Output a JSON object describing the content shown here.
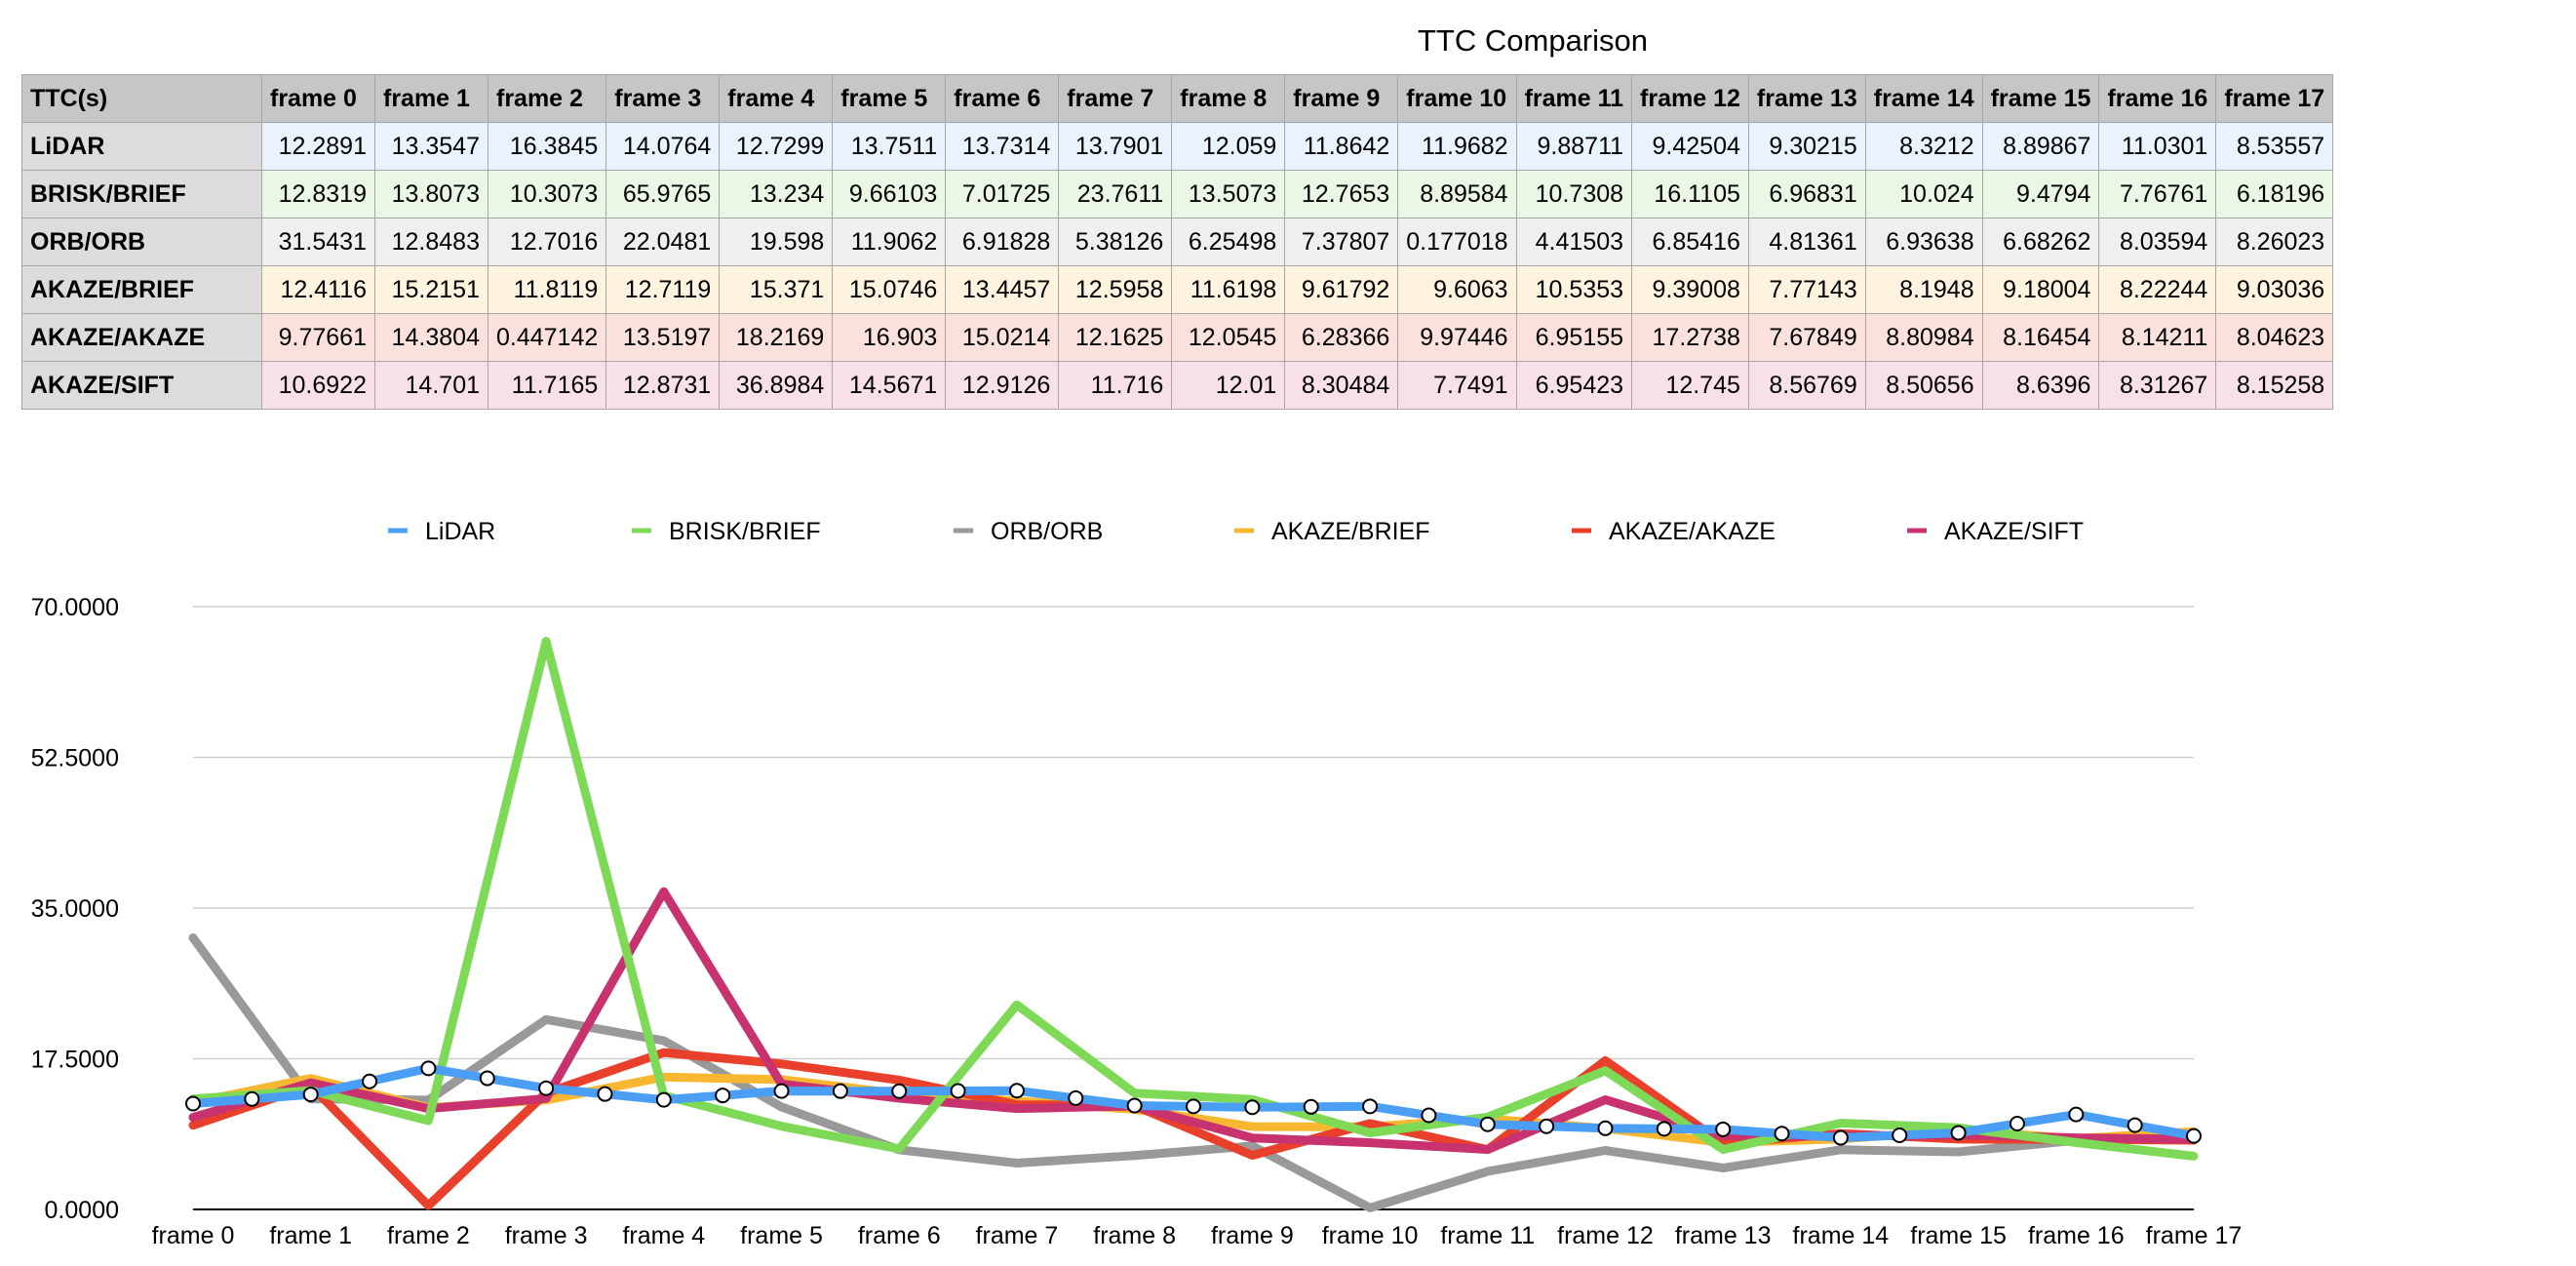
{
  "table": {
    "corner_label": "TTC(s)"
  },
  "chart_data": {
    "type": "line",
    "title": "TTC Comparison",
    "categories": [
      "frame 0",
      "frame 1",
      "frame 2",
      "frame 3",
      "frame 4",
      "frame 5",
      "frame 6",
      "frame 7",
      "frame 8",
      "frame 9",
      "frame 10",
      "frame 11",
      "frame 12",
      "frame 13",
      "frame 14",
      "frame 15",
      "frame 16",
      "frame 17"
    ],
    "ylim": [
      0,
      70
    ],
    "yticks": [
      "0.0000",
      "17.5000",
      "35.0000",
      "52.5000",
      "70.0000"
    ],
    "grid": true,
    "legend_position": "top",
    "series": [
      {
        "name": "LiDAR",
        "color": "#4a9ff5",
        "row_bg": "#e8f3fd",
        "markers": true,
        "values": [
          "12.2891",
          "13.3547",
          "16.3845",
          "14.0764",
          "12.7299",
          "13.7511",
          "13.7314",
          "13.7901",
          "12.059",
          "11.8642",
          "11.9682",
          "9.88711",
          "9.42504",
          "9.30215",
          "8.3212",
          "8.89867",
          "11.0301",
          "8.53557"
        ]
      },
      {
        "name": "BRISK/BRIEF",
        "color": "#7ed957",
        "row_bg": "#eaf7e4",
        "markers": false,
        "values": [
          "12.8319",
          "13.8073",
          "10.3073",
          "65.9765",
          "13.234",
          "9.66103",
          "7.01725",
          "23.7611",
          "13.5073",
          "12.7653",
          "8.89584",
          "10.7308",
          "16.1105",
          "6.96831",
          "10.024",
          "9.4794",
          "7.76761",
          "6.18196"
        ]
      },
      {
        "name": "ORB/ORB",
        "color": "#999999",
        "row_bg": "#efefef",
        "markers": false,
        "values": [
          "31.5431",
          "12.8483",
          "12.7016",
          "22.0481",
          "19.598",
          "11.9062",
          "6.91828",
          "5.38126",
          "6.25498",
          "7.37807",
          "0.177018",
          "4.41503",
          "6.85416",
          "4.81361",
          "6.93638",
          "6.68262",
          "8.03594",
          "8.26023"
        ]
      },
      {
        "name": "AKAZE/BRIEF",
        "color": "#f7b731",
        "row_bg": "#fdf3de",
        "markers": false,
        "values": [
          "12.4116",
          "15.2151",
          "11.8119",
          "12.7119",
          "15.371",
          "15.0746",
          "13.4457",
          "12.5958",
          "11.6198",
          "9.61792",
          "9.6063",
          "10.5353",
          "9.39008",
          "7.77143",
          "8.1948",
          "9.18004",
          "8.22244",
          "9.03036"
        ]
      },
      {
        "name": "AKAZE/AKAZE",
        "color": "#e8402b",
        "row_bg": "#fbe1dc",
        "markers": false,
        "values": [
          "9.77661",
          "14.3804",
          "0.447142",
          "13.5197",
          "18.2169",
          "16.903",
          "15.0214",
          "12.1625",
          "12.0545",
          "6.28366",
          "9.97446",
          "6.95155",
          "17.2738",
          "7.67849",
          "8.80984",
          "8.16454",
          "8.14211",
          "8.04623"
        ]
      },
      {
        "name": "AKAZE/SIFT",
        "color": "#c8336f",
        "row_bg": "#f7e0ea",
        "markers": false,
        "values": [
          "10.6922",
          "14.701",
          "11.7165",
          "12.8731",
          "36.8984",
          "14.5671",
          "12.9126",
          "11.716",
          "12.01",
          "8.30484",
          "7.7491",
          "6.95423",
          "12.745",
          "8.56769",
          "8.50656",
          "8.6396",
          "8.31267",
          "8.15258"
        ]
      }
    ]
  }
}
